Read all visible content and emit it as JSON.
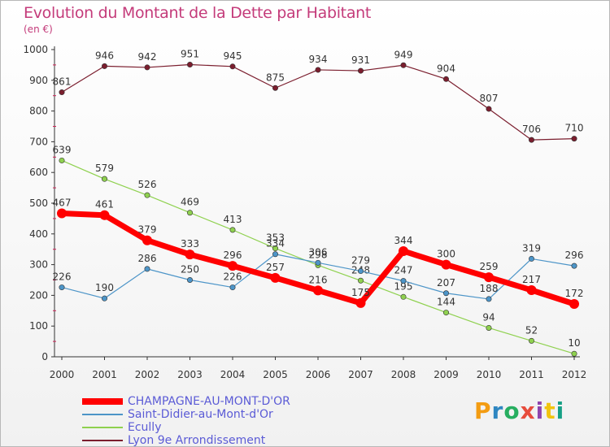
{
  "title": "Evolution du Montant de la Dette par Habitant",
  "subtitle": "(en €)",
  "logo": {
    "text": "Proxiti",
    "colors": [
      "#f39c12",
      "#2e86c1",
      "#27ae60",
      "#e74c3c",
      "#8e44ad",
      "#f1c40f",
      "#16a085"
    ]
  },
  "chart_data": {
    "type": "line",
    "title": "Evolution du Montant de la Dette par Habitant",
    "ylabel": "(en €)",
    "xlabel": "",
    "x": [
      "2000",
      "2001",
      "2002",
      "2003",
      "2004",
      "2005",
      "2006",
      "2007",
      "2008",
      "2009",
      "2010",
      "2011",
      "2012"
    ],
    "ylim": [
      0,
      1000
    ],
    "yticks": [
      "0",
      "100",
      "200",
      "300",
      "400",
      "500",
      "600",
      "700",
      "800",
      "900",
      "1000"
    ],
    "grid": false,
    "legend_position": "bottom-left",
    "series": [
      {
        "name": "Lyon 9e  Arrondissement",
        "color": "#7b1e2e",
        "values": [
          861,
          946,
          942,
          951,
          945,
          875,
          934,
          931,
          949,
          904,
          807,
          706,
          710
        ],
        "labels": [
          "861",
          "946",
          "942",
          "951",
          "945",
          "875",
          "934",
          "931",
          "949",
          "904",
          "807",
          "706",
          "710"
        ]
      },
      {
        "name": "Ecully",
        "color": "#8fd14f",
        "values": [
          639,
          579,
          526,
          469,
          413,
          353,
          298,
          248,
          195,
          144,
          94,
          52,
          10
        ],
        "labels": [
          "639",
          "579",
          "526",
          "469",
          "413",
          "353",
          "298",
          "248",
          "195",
          "144",
          "94",
          "52",
          "10"
        ]
      },
      {
        "name": "Saint-Didier-au-Mont-d'Or",
        "color": "#4d95c8",
        "values": [
          226,
          190,
          286,
          250,
          226,
          334,
          306,
          279,
          247,
          207,
          188,
          319,
          296
        ],
        "labels": [
          "226",
          "190",
          "286",
          "250",
          "226",
          "334",
          "306",
          "279",
          "247",
          "207",
          "188",
          "319",
          "296"
        ]
      },
      {
        "name": "CHAMPAGNE-AU-MONT-D'OR",
        "color": "#ff0000",
        "values": [
          467,
          461,
          379,
          333,
          296,
          257,
          216,
          175,
          344,
          300,
          259,
          217,
          172
        ],
        "labels": [
          "467",
          "461",
          "379",
          "333",
          "296",
          "257",
          "216",
          "175",
          "344",
          "300",
          "259",
          "217",
          "172"
        ]
      }
    ]
  },
  "legend": [
    {
      "label": "CHAMPAGNE-AU-MONT-D'OR",
      "color": "#ff0000"
    },
    {
      "label": "Saint-Didier-au-Mont-d'Or",
      "color": "#4d95c8"
    },
    {
      "label": "Ecully",
      "color": "#8fd14f"
    },
    {
      "label": "Lyon 9e  Arrondissement",
      "color": "#7b1e2e"
    }
  ]
}
